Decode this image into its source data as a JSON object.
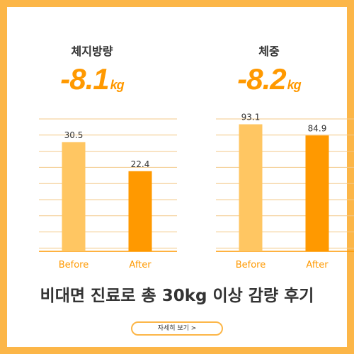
{
  "colors": {
    "frame": "#fcb648",
    "accent": "#ff9900",
    "before_bar": "#ffc662",
    "after_bar": "#ff9900",
    "grid": "#f3c98a",
    "axis": "#ff9900"
  },
  "panels": [
    {
      "label": "체지방량",
      "value": "-8.1",
      "unit": "kg"
    },
    {
      "label": "체중",
      "value": "-8.2",
      "unit": "kg"
    }
  ],
  "chart_data": [
    {
      "type": "bar",
      "categories": [
        "Before",
        "After"
      ],
      "values": [
        30.5,
        22.4
      ],
      "value_labels": [
        "30.5",
        "22.4"
      ],
      "ylim": [
        0,
        37
      ],
      "grid": true
    },
    {
      "type": "bar",
      "categories": [
        "Before",
        "After"
      ],
      "values": [
        93.1,
        84.9
      ],
      "value_labels": [
        "93.1",
        "84.9"
      ],
      "ylim": [
        0,
        97
      ],
      "grid": true
    }
  ],
  "footer": {
    "title": "비대면 진료로 총 30kg 이상 감량 후기",
    "button_label": "자세히 보기 >"
  }
}
